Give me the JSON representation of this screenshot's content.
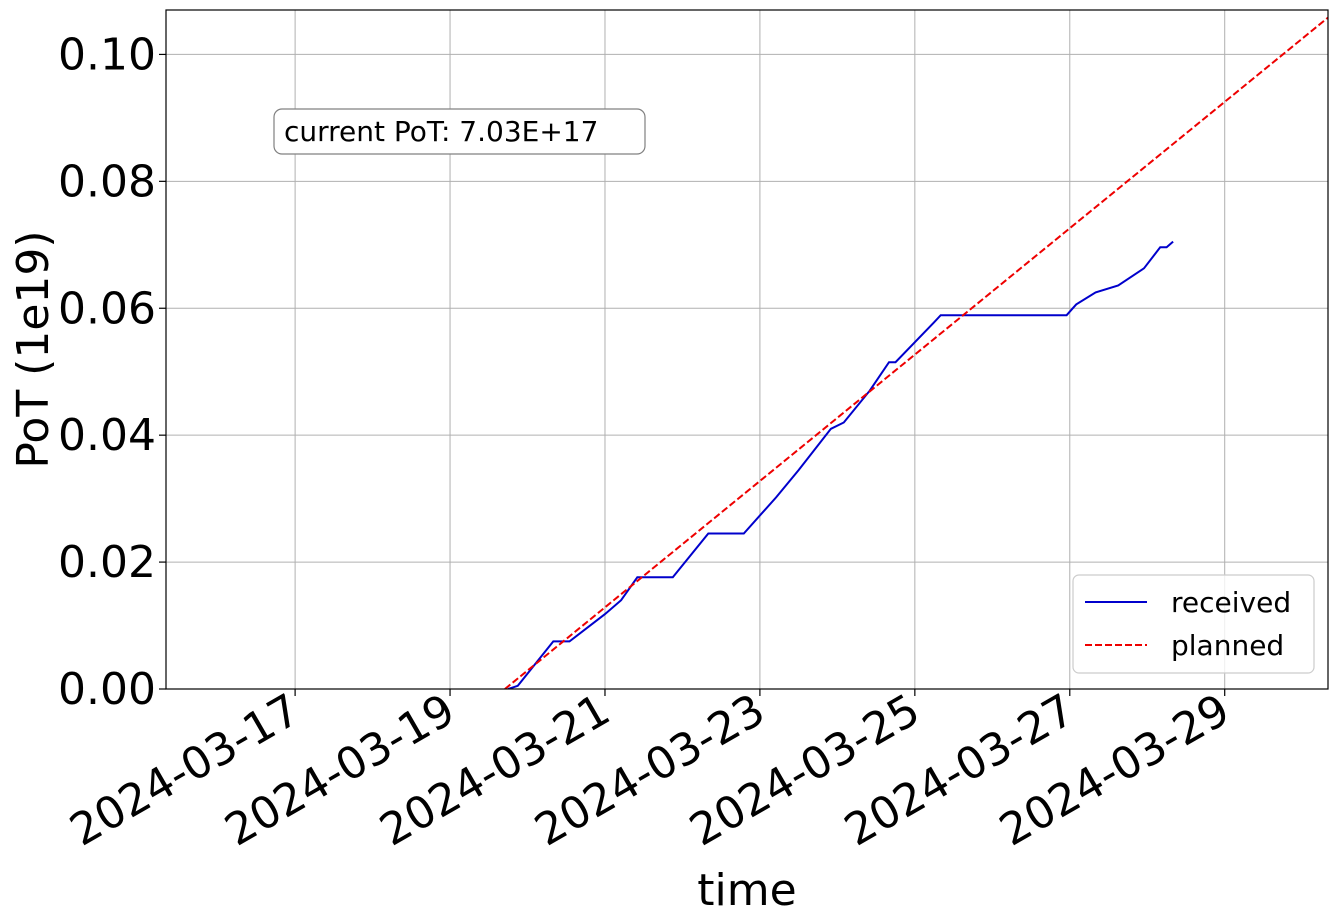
{
  "chart_data": {
    "type": "line",
    "xlabel": "time",
    "ylabel": "PoT (1e19)",
    "annotation": "current PoT:  7.03E+17",
    "xlim": [
      "2024-03-15T08:00",
      "2024-03-30T08:00"
    ],
    "xticks": [
      "2024-03-17",
      "2024-03-19",
      "2024-03-21",
      "2024-03-23",
      "2024-03-25",
      "2024-03-27",
      "2024-03-29"
    ],
    "ylim": [
      0,
      0.107
    ],
    "yticks": [
      {
        "value": 0,
        "label": "0.00"
      },
      {
        "value": 0.02,
        "label": "0.02"
      },
      {
        "value": 0.04,
        "label": "0.04"
      },
      {
        "value": 0.06,
        "label": "0.06"
      },
      {
        "value": 0.08,
        "label": "0.08"
      },
      {
        "value": 0.1,
        "label": "0.10"
      }
    ],
    "grid": true,
    "legend": "lower right",
    "series": [
      {
        "name": "received",
        "color": "#0000cc",
        "dash": "solid",
        "x": [
          "2024-03-19T18:00",
          "2024-03-19T21:00",
          "2024-03-20T08:00",
          "2024-03-20T13:00",
          "2024-03-21T00:00",
          "2024-03-21T05:00",
          "2024-03-21T10:00",
          "2024-03-21T21:00",
          "2024-03-22T08:00",
          "2024-03-22T19:00",
          "2024-03-23T05:00",
          "2024-03-23T12:00",
          "2024-03-23T22:00",
          "2024-03-24T02:00",
          "2024-03-24T10:00",
          "2024-03-24T16:00",
          "2024-03-24T18:00",
          "2024-03-25T06:00",
          "2024-03-25T08:00",
          "2024-03-26T23:00",
          "2024-03-27T02:00",
          "2024-03-27T08:00",
          "2024-03-27T15:00",
          "2024-03-27T23:00",
          "2024-03-28T04:00",
          "2024-03-28T06:00",
          "2024-03-28T08:00"
        ],
        "values": [
          0,
          0.0005,
          0.0075,
          0.0075,
          0.0118,
          0.014,
          0.0176,
          0.0176,
          0.0245,
          0.0245,
          0.0302,
          0.0345,
          0.041,
          0.042,
          0.047,
          0.0515,
          0.0515,
          0.0578,
          0.0589,
          0.0589,
          0.0606,
          0.0625,
          0.0636,
          0.0663,
          0.0696,
          0.0696,
          0.0705
        ]
      },
      {
        "name": "planned",
        "color": "#ee0000",
        "dash": "dashed",
        "x": [
          "2024-03-19T17:00",
          "2024-03-30T08:00"
        ],
        "values": [
          0,
          0.1058
        ]
      }
    ]
  }
}
